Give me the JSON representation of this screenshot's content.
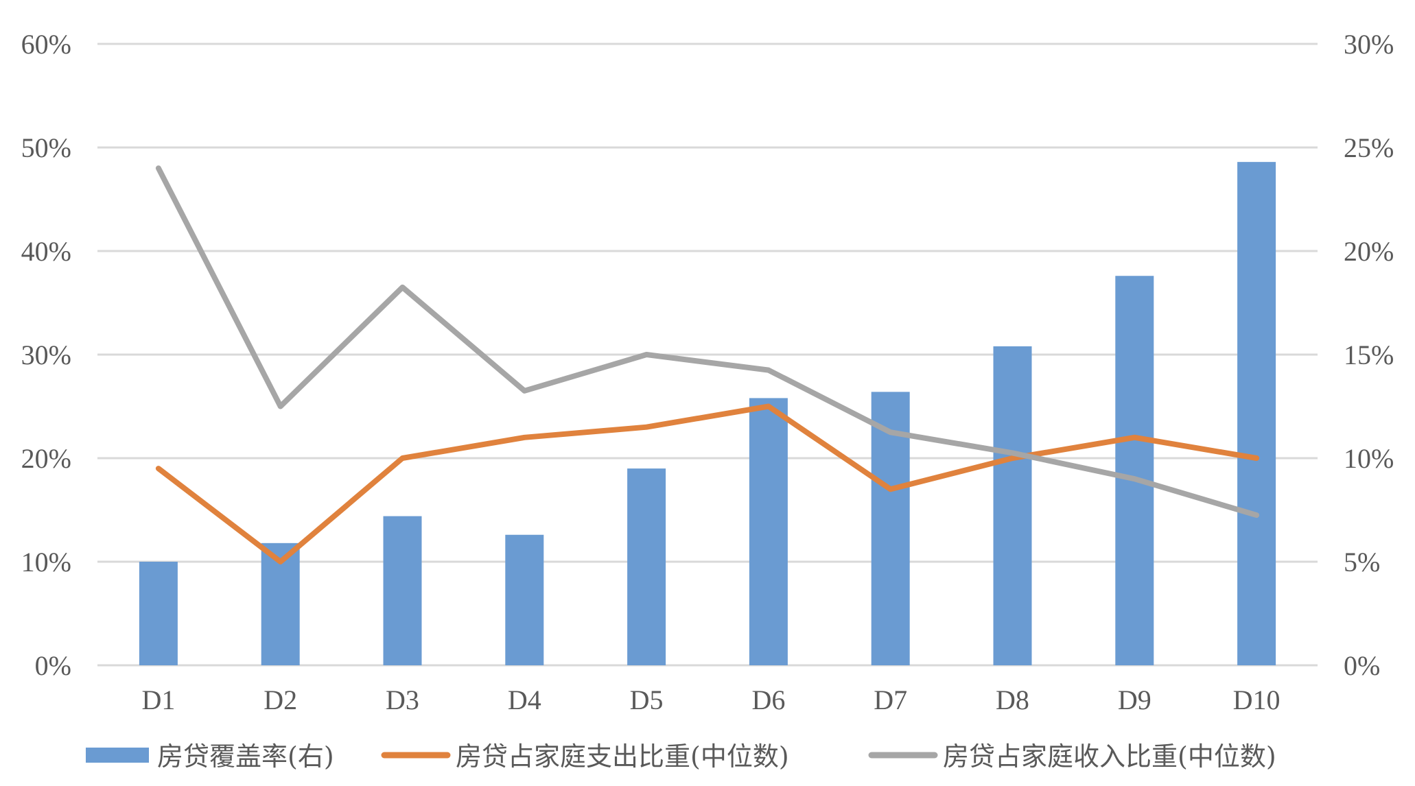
{
  "chart_data": {
    "type": "bar+line",
    "title": "",
    "categories": [
      "D1",
      "D2",
      "D3",
      "D4",
      "D5",
      "D6",
      "D7",
      "D8",
      "D9",
      "D10"
    ],
    "left_axis": {
      "min": 0,
      "max": 60,
      "ticks": [
        "0%",
        "10%",
        "20%",
        "30%",
        "40%",
        "50%",
        "60%"
      ]
    },
    "right_axis": {
      "min": 0,
      "max": 30,
      "ticks": [
        "0%",
        "5%",
        "10%",
        "15%",
        "20%",
        "25%",
        "30%"
      ]
    },
    "grid": true,
    "legend_position": "bottom",
    "series": [
      {
        "name": "房贷覆盖率(右)",
        "type": "bar",
        "axis": "right",
        "color": "#6a9bd2",
        "values": [
          5.0,
          5.9,
          7.2,
          6.3,
          9.5,
          12.9,
          13.2,
          15.4,
          18.8,
          24.3
        ]
      },
      {
        "name": "房贷占家庭支出比重(中位数)",
        "type": "line",
        "axis": "left",
        "color": "#e0823d",
        "values": [
          19.0,
          10.0,
          20.0,
          22.0,
          23.0,
          25.0,
          17.0,
          20.0,
          22.0,
          20.0
        ]
      },
      {
        "name": "房贷占家庭收入比重(中位数)",
        "type": "line",
        "axis": "left",
        "color": "#a6a6a6",
        "values": [
          48.0,
          25.0,
          36.5,
          26.5,
          30.0,
          28.5,
          22.5,
          20.5,
          18.0,
          14.5
        ]
      }
    ]
  }
}
